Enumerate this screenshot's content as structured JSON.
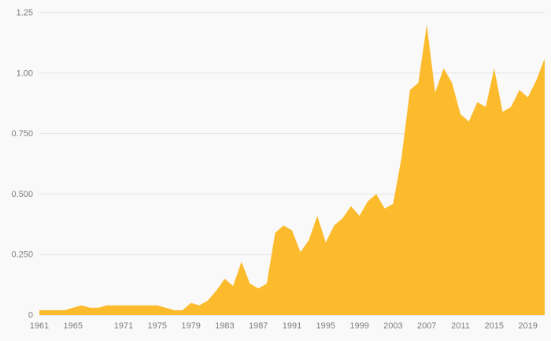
{
  "chart_data": {
    "type": "area",
    "title": "",
    "xlabel": "",
    "ylabel": "",
    "grid": true,
    "legend": "none",
    "ylim": [
      0,
      1.25
    ],
    "x": [
      1961,
      1962,
      1963,
      1964,
      1965,
      1966,
      1967,
      1968,
      1969,
      1970,
      1971,
      1972,
      1973,
      1974,
      1975,
      1976,
      1977,
      1978,
      1979,
      1980,
      1981,
      1982,
      1983,
      1984,
      1985,
      1986,
      1987,
      1988,
      1989,
      1990,
      1991,
      1992,
      1993,
      1994,
      1995,
      1996,
      1997,
      1998,
      1999,
      2000,
      2001,
      2002,
      2003,
      2004,
      2005,
      2006,
      2007,
      2008,
      2009,
      2010,
      2011,
      2012,
      2013,
      2014,
      2015,
      2016,
      2017,
      2018,
      2019,
      2020,
      2021
    ],
    "values": [
      0.02,
      0.02,
      0.02,
      0.02,
      0.03,
      0.04,
      0.03,
      0.03,
      0.04,
      0.04,
      0.04,
      0.04,
      0.04,
      0.04,
      0.04,
      0.03,
      0.02,
      0.02,
      0.05,
      0.04,
      0.06,
      0.1,
      0.15,
      0.12,
      0.22,
      0.13,
      0.11,
      0.13,
      0.34,
      0.37,
      0.35,
      0.26,
      0.31,
      0.41,
      0.3,
      0.37,
      0.4,
      0.45,
      0.41,
      0.47,
      0.5,
      0.44,
      0.46,
      0.65,
      0.93,
      0.96,
      1.2,
      0.92,
      1.02,
      0.96,
      0.83,
      0.8,
      0.88,
      0.86,
      1.02,
      0.84,
      0.86,
      0.93,
      0.9,
      0.97,
      1.06
    ],
    "yticks": [
      {
        "v": 0,
        "label": "0"
      },
      {
        "v": 0.25,
        "label": "0.250"
      },
      {
        "v": 0.5,
        "label": "0.500"
      },
      {
        "v": 0.75,
        "label": "0.750"
      },
      {
        "v": 1.0,
        "label": "1.00"
      },
      {
        "v": 1.25,
        "label": "1.25"
      }
    ],
    "xticks": [
      1961,
      1965,
      1971,
      1975,
      1979,
      1983,
      1987,
      1991,
      1995,
      1999,
      2003,
      2007,
      2011,
      2015,
      2019
    ],
    "colors": {
      "area": "#fcbb2d",
      "grid": "#e4e4e4",
      "baseline": "#d9d9d9",
      "tick_text": "#7d7d7d",
      "background": "#f9f9f9"
    }
  }
}
